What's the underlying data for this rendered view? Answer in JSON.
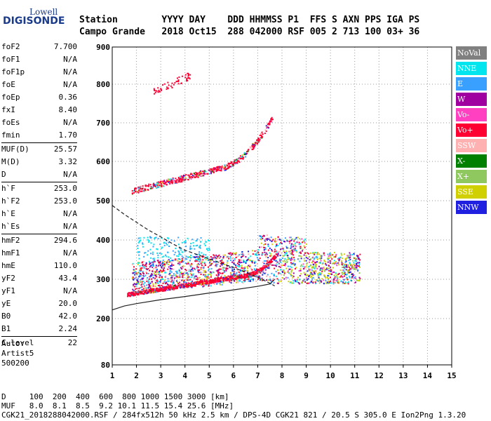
{
  "logo": {
    "line1": "Lowell",
    "line2": "DIGISONDE"
  },
  "header": {
    "line1": "Station        YYYY DAY    DDD HHMMSS P1  FFS S AXN PPS IGA PS",
    "line2": "Campo Grande   2018 Oct15  288 042000 RSF 005 2 713 100 03+ 36"
  },
  "params": [
    {
      "group": [
        {
          "k": "foF2",
          "v": "7.700"
        },
        {
          "k": "foF1",
          "v": "N/A"
        },
        {
          "k": "foF1p",
          "v": "N/A"
        },
        {
          "k": "foE",
          "v": "N/A"
        },
        {
          "k": "foEp",
          "v": "0.36"
        },
        {
          "k": "fxI",
          "v": "8.40"
        },
        {
          "k": "foEs",
          "v": "N/A"
        },
        {
          "k": "fmin",
          "v": "1.70"
        }
      ]
    },
    {
      "group": [
        {
          "k": "MUF(D)",
          "v": "25.57"
        },
        {
          "k": "M(D)",
          "v": "3.32"
        },
        {
          "k": "D",
          "v": "N/A"
        }
      ]
    },
    {
      "group": [
        {
          "k": "h`F",
          "v": "253.0"
        },
        {
          "k": "h`F2",
          "v": "253.0"
        },
        {
          "k": "h`E",
          "v": "N/A"
        },
        {
          "k": "h`Es",
          "v": "N/A"
        }
      ]
    },
    {
      "group": [
        {
          "k": "hmF2",
          "v": "294.6"
        },
        {
          "k": "hmF1",
          "v": "N/A"
        },
        {
          "k": "hmE",
          "v": "110.0"
        },
        {
          "k": "yF2",
          "v": "43.4"
        },
        {
          "k": "yF1",
          "v": "N/A"
        },
        {
          "k": "yE",
          "v": "20.0"
        },
        {
          "k": "B0",
          "v": "42.0"
        },
        {
          "k": "B1",
          "v": "2.24"
        }
      ]
    },
    {
      "group": [
        {
          "k": "C-level",
          "v": "22"
        }
      ]
    }
  ],
  "auto": [
    "Auto:",
    "Artist5",
    "500200"
  ],
  "legend": [
    {
      "label": "NoVal",
      "color": "#808080"
    },
    {
      "label": "NNE",
      "color": "#00e5ee"
    },
    {
      "label": "E",
      "color": "#3aa0ff"
    },
    {
      "label": "W",
      "color": "#a000a0"
    },
    {
      "label": "Vo-",
      "color": "#ff40c0"
    },
    {
      "label": "Vo+",
      "color": "#ff0033"
    },
    {
      "label": "SSW",
      "color": "#ffb0b0"
    },
    {
      "label": "X-",
      "color": "#008000"
    },
    {
      "label": "X+",
      "color": "#90c860"
    },
    {
      "label": "SSE",
      "color": "#d0d000"
    },
    {
      "label": "NNW",
      "color": "#2020e0"
    }
  ],
  "footer": {
    "line1": "D     100  200  400  600  800 1000 1500 3000 [km]",
    "line2": "MUF   8.0  8.1  8.5  9.2 10.1 11.5 15.4 25.6 [MHz]",
    "line3": "CGK21_2018288042000.RSF / 284fx512h 50 kHz 2.5 km / DPS-4D CGK21 821 / 20.5 S 305.0 E Ion2Png 1.3.20"
  },
  "chart_data": {
    "type": "scatter",
    "xlim": [
      1,
      15
    ],
    "ylim": [
      80,
      900
    ],
    "x_ticks": [
      1,
      2,
      3,
      4,
      5,
      6,
      7,
      8,
      9,
      10,
      11,
      12,
      13,
      14,
      15
    ],
    "y_ticks": [
      80,
      200,
      300,
      400,
      500,
      600,
      700,
      800,
      900
    ],
    "grid": true,
    "traces": [
      {
        "x_range": [
          1.6,
          7.8
        ],
        "y": "F-trace",
        "color": "#ff0033"
      },
      {
        "x_range": [
          1.8,
          11.2
        ],
        "y": "spread-F",
        "color": "mixed"
      },
      {
        "x_range": [
          1.8,
          7.5
        ],
        "y": "second hop",
        "color": "#ff0033"
      }
    ],
    "profile_curve": {
      "x": [
        1.0,
        1.5,
        2.0,
        3.0,
        4.0,
        5.0,
        6.0,
        7.0,
        7.5,
        7.7
      ],
      "y": [
        222,
        232,
        238,
        248,
        256,
        265,
        273,
        282,
        288,
        300
      ]
    },
    "muf_curve": {
      "x": [
        1.0,
        1.5,
        2.0,
        2.5,
        3.0,
        3.5,
        4.0,
        5.0,
        6.0,
        7.0,
        7.5,
        7.7
      ],
      "y": [
        488,
        465,
        445,
        425,
        408,
        390,
        374,
        352,
        330,
        305,
        290,
        283
      ]
    }
  }
}
